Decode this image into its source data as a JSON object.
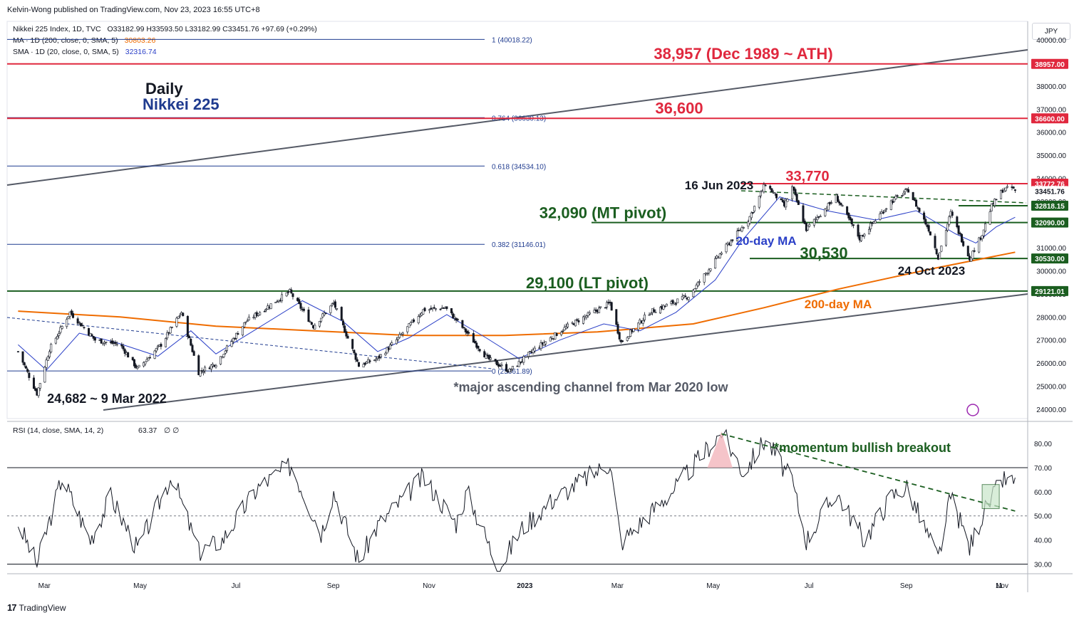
{
  "header": {
    "published": "Kelvin-Wong published on TradingView.com, Nov 23, 2023 16:55 UTC+8",
    "legend_main_label": "Nikkei 225 Index, 1D, TVC",
    "legend_main_values": "O33182.99  H33593.50  L33182.99  C33451.76  +97.69 (+0.29%)",
    "legend_ma200_label": "MA · 1D (200, close, 0, SMA, 5)",
    "legend_ma200_value": "30803.26",
    "legend_ma20_label": "SMA · 1D (20, close, 0, SMA, 5)",
    "legend_ma20_value": "32316.74",
    "currency": "JPY"
  },
  "footer": {
    "brand": "TradingView"
  },
  "colors": {
    "red": "#e0283e",
    "green": "#1b5e20",
    "blue": "#2a3fc7",
    "orange": "#ef6c00",
    "navy": "#1f3b8f",
    "price": "#131722",
    "grid_blue": "#1f3b8f"
  },
  "chart_data": [
    {
      "type": "candlestick",
      "title": "Daily",
      "subtitle": "Nikkei 225",
      "ylim": [
        23600,
        40800
      ],
      "y_ticks": [
        24000,
        25000,
        26000,
        27000,
        28000,
        29000,
        30000,
        31000,
        32000,
        33000,
        34000,
        35000,
        36000,
        37000,
        38000,
        39000,
        40000
      ],
      "x_ticks": [
        "Mar",
        "May",
        "Jul",
        "Sep",
        "Nov",
        "2023",
        "Mar",
        "May",
        "Jul",
        "Sep",
        "Nov",
        "11"
      ],
      "price_path": [
        [
          "2022-02-25",
          26500
        ],
        [
          "2022-03-09",
          24682
        ],
        [
          "2022-03-17",
          26600
        ],
        [
          "2022-03-30",
          28200
        ],
        [
          "2022-04-15",
          27000
        ],
        [
          "2022-05-01",
          26800
        ],
        [
          "2022-05-12",
          25750
        ],
        [
          "2022-05-27",
          26800
        ],
        [
          "2022-06-09",
          28200
        ],
        [
          "2022-06-20",
          25600
        ],
        [
          "2022-07-01",
          26000
        ],
        [
          "2022-07-20",
          27800
        ],
        [
          "2022-08-17",
          29100
        ],
        [
          "2022-09-01",
          27600
        ],
        [
          "2022-09-14",
          28600
        ],
        [
          "2022-09-30",
          25900
        ],
        [
          "2022-10-12",
          26200
        ],
        [
          "2022-10-24",
          27000
        ],
        [
          "2022-11-10",
          28300
        ],
        [
          "2022-11-24",
          28400
        ],
        [
          "2022-12-02",
          27800
        ],
        [
          "2022-12-21",
          26200
        ],
        [
          "2023-01-04",
          25661.89
        ],
        [
          "2023-01-20",
          26600
        ],
        [
          "2023-02-10",
          27600
        ],
        [
          "2023-03-09",
          28600
        ],
        [
          "2023-03-16",
          26900
        ],
        [
          "2023-04-03",
          28200
        ],
        [
          "2023-04-28",
          28900
        ],
        [
          "2023-05-19",
          30800
        ],
        [
          "2023-06-05",
          32200
        ],
        [
          "2023-06-16",
          33772.76
        ],
        [
          "2023-06-28",
          32800
        ],
        [
          "2023-07-03",
          33600
        ],
        [
          "2023-07-12",
          31800
        ],
        [
          "2023-07-31",
          33200
        ],
        [
          "2023-08-15",
          31400
        ],
        [
          "2023-09-04",
          33000
        ],
        [
          "2023-09-15",
          33500
        ],
        [
          "2023-09-28",
          31800
        ],
        [
          "2023-10-04",
          30600
        ],
        [
          "2023-10-12",
          32500
        ],
        [
          "2023-10-24",
          30530
        ],
        [
          "2023-11-01",
          31600
        ],
        [
          "2023-11-07",
          32800
        ],
        [
          "2023-11-14",
          33500
        ],
        [
          "2023-11-20",
          33593.5
        ],
        [
          "2023-11-22",
          33451.76
        ]
      ],
      "ma20_path": [
        [
          "2022-02-25",
          26800
        ],
        [
          "2022-03-15",
          25700
        ],
        [
          "2022-04-05",
          27300
        ],
        [
          "2022-04-28",
          26900
        ],
        [
          "2022-05-25",
          26300
        ],
        [
          "2022-06-15",
          27400
        ],
        [
          "2022-07-01",
          26400
        ],
        [
          "2022-07-25",
          27400
        ],
        [
          "2022-08-25",
          28700
        ],
        [
          "2022-09-20",
          27800
        ],
        [
          "2022-10-12",
          26500
        ],
        [
          "2022-11-01",
          27100
        ],
        [
          "2022-11-25",
          28100
        ],
        [
          "2022-12-20",
          27100
        ],
        [
          "2023-01-10",
          26200
        ],
        [
          "2023-02-05",
          27000
        ],
        [
          "2023-03-05",
          27700
        ],
        [
          "2023-03-28",
          27400
        ],
        [
          "2023-04-20",
          28200
        ],
        [
          "2023-05-15",
          29600
        ],
        [
          "2023-06-01",
          31300
        ],
        [
          "2023-06-25",
          33200
        ],
        [
          "2023-07-25",
          32600
        ],
        [
          "2023-08-25",
          32200
        ],
        [
          "2023-09-20",
          32600
        ],
        [
          "2023-10-15",
          31600
        ],
        [
          "2023-10-28",
          31200
        ],
        [
          "2023-11-10",
          31900
        ],
        [
          "2023-11-22",
          32316.74
        ]
      ],
      "ma200_path": [
        [
          "2022-02-25",
          28250
        ],
        [
          "2022-05-01",
          28000
        ],
        [
          "2022-07-01",
          27600
        ],
        [
          "2022-09-01",
          27400
        ],
        [
          "2022-11-01",
          27200
        ],
        [
          "2023-01-01",
          27200
        ],
        [
          "2023-03-01",
          27350
        ],
        [
          "2023-05-01",
          27700
        ],
        [
          "2023-06-15",
          28400
        ],
        [
          "2023-08-01",
          29200
        ],
        [
          "2023-10-01",
          30100
        ],
        [
          "2023-11-22",
          30803.26
        ]
      ],
      "fib_levels": [
        {
          "label": "1 (40018.22)",
          "value": 40018.22
        },
        {
          "label": "0.764 (36630.13)",
          "value": 36630.13
        },
        {
          "label": "0.618 (34534.10)",
          "value": 34534.1
        },
        {
          "label": "0.382 (31146.01)",
          "value": 31146.01
        },
        {
          "label": "0 (25661.89)",
          "value": 25661.89
        }
      ],
      "levels": [
        {
          "label": "38,957 (Dec 1989 ~ ATH)",
          "value": 38957,
          "color": "red"
        },
        {
          "label": "36,600",
          "value": 36600,
          "color": "red"
        },
        {
          "label": "33,770",
          "value": 33772.76,
          "color": "red"
        },
        {
          "label": "32,090 (MT pivot)",
          "value": 32090,
          "color": "green"
        },
        {
          "label": "30,530",
          "value": 30530,
          "color": "green"
        },
        {
          "label": "29,100 (LT pivot)",
          "value": 29121.01,
          "color": "green"
        }
      ],
      "price_tags": [
        {
          "text": "38957.00",
          "value": 38957,
          "color": "red"
        },
        {
          "text": "36600.00",
          "value": 36600,
          "color": "red"
        },
        {
          "text": "33772.76",
          "value": 33772.76,
          "color": "red"
        },
        {
          "text": "33451.76",
          "value": 33451.76,
          "color": "plain"
        },
        {
          "text": "32818.15",
          "value": 32818.15,
          "color": "green"
        },
        {
          "text": "32090.00",
          "value": 32090,
          "color": "green"
        },
        {
          "text": "30530.00",
          "value": 30530,
          "color": "green"
        },
        {
          "text": "29121.01",
          "value": 29121.01,
          "color": "green"
        }
      ],
      "annotations": {
        "jun_high": "16 Jun 2023",
        "oct_low": "24 Oct 2023",
        "mar_low": "24,682 ~ 9 Mar 2022",
        "ma20": "20-day MA",
        "ma200": "200-day MA",
        "channel": "*major ascending channel from Mar 2020 low"
      }
    },
    {
      "type": "line",
      "title": "RSI (14, close, SMA, 14, 2)",
      "value": "63.37",
      "extra": "∅  ∅",
      "ylim": [
        26,
        88
      ],
      "y_ticks": [
        30,
        40,
        50,
        60,
        70,
        80
      ],
      "bands": [
        30,
        50,
        70
      ],
      "rsi_path": [
        [
          "2022-02-25",
          47
        ],
        [
          "2022-03-09",
          30
        ],
        [
          "2022-03-25",
          66
        ],
        [
          "2022-04-12",
          40
        ],
        [
          "2022-04-25",
          58
        ],
        [
          "2022-05-12",
          36
        ],
        [
          "2022-06-03",
          67
        ],
        [
          "2022-06-20",
          35
        ],
        [
          "2022-07-05",
          40
        ],
        [
          "2022-07-28",
          62
        ],
        [
          "2022-08-18",
          71
        ],
        [
          "2022-09-06",
          43
        ],
        [
          "2022-09-14",
          60
        ],
        [
          "2022-09-30",
          31
        ],
        [
          "2022-10-12",
          46
        ],
        [
          "2022-11-10",
          66
        ],
        [
          "2022-12-01",
          47
        ],
        [
          "2022-12-08",
          60
        ],
        [
          "2022-12-28",
          28
        ],
        [
          "2023-01-12",
          45
        ],
        [
          "2023-02-01",
          57
        ],
        [
          "2023-03-09",
          72
        ],
        [
          "2023-03-16",
          39
        ],
        [
          "2023-04-20",
          62
        ],
        [
          "2023-05-19",
          85
        ],
        [
          "2023-06-02",
          68
        ],
        [
          "2023-06-16",
          82
        ],
        [
          "2023-07-03",
          64
        ],
        [
          "2023-07-12",
          40
        ],
        [
          "2023-07-31",
          60
        ],
        [
          "2023-08-18",
          40
        ],
        [
          "2023-09-04",
          58
        ],
        [
          "2023-09-14",
          62
        ],
        [
          "2023-10-04",
          32
        ],
        [
          "2023-10-12",
          58
        ],
        [
          "2023-10-24",
          37
        ],
        [
          "2023-11-01",
          50
        ],
        [
          "2023-11-14",
          65
        ],
        [
          "2023-11-22",
          63.37
        ]
      ],
      "trendline": [
        [
          "2023-05-19",
          84
        ],
        [
          "2023-11-22",
          52
        ]
      ],
      "annotation": "*momentum bullish breakout"
    }
  ]
}
